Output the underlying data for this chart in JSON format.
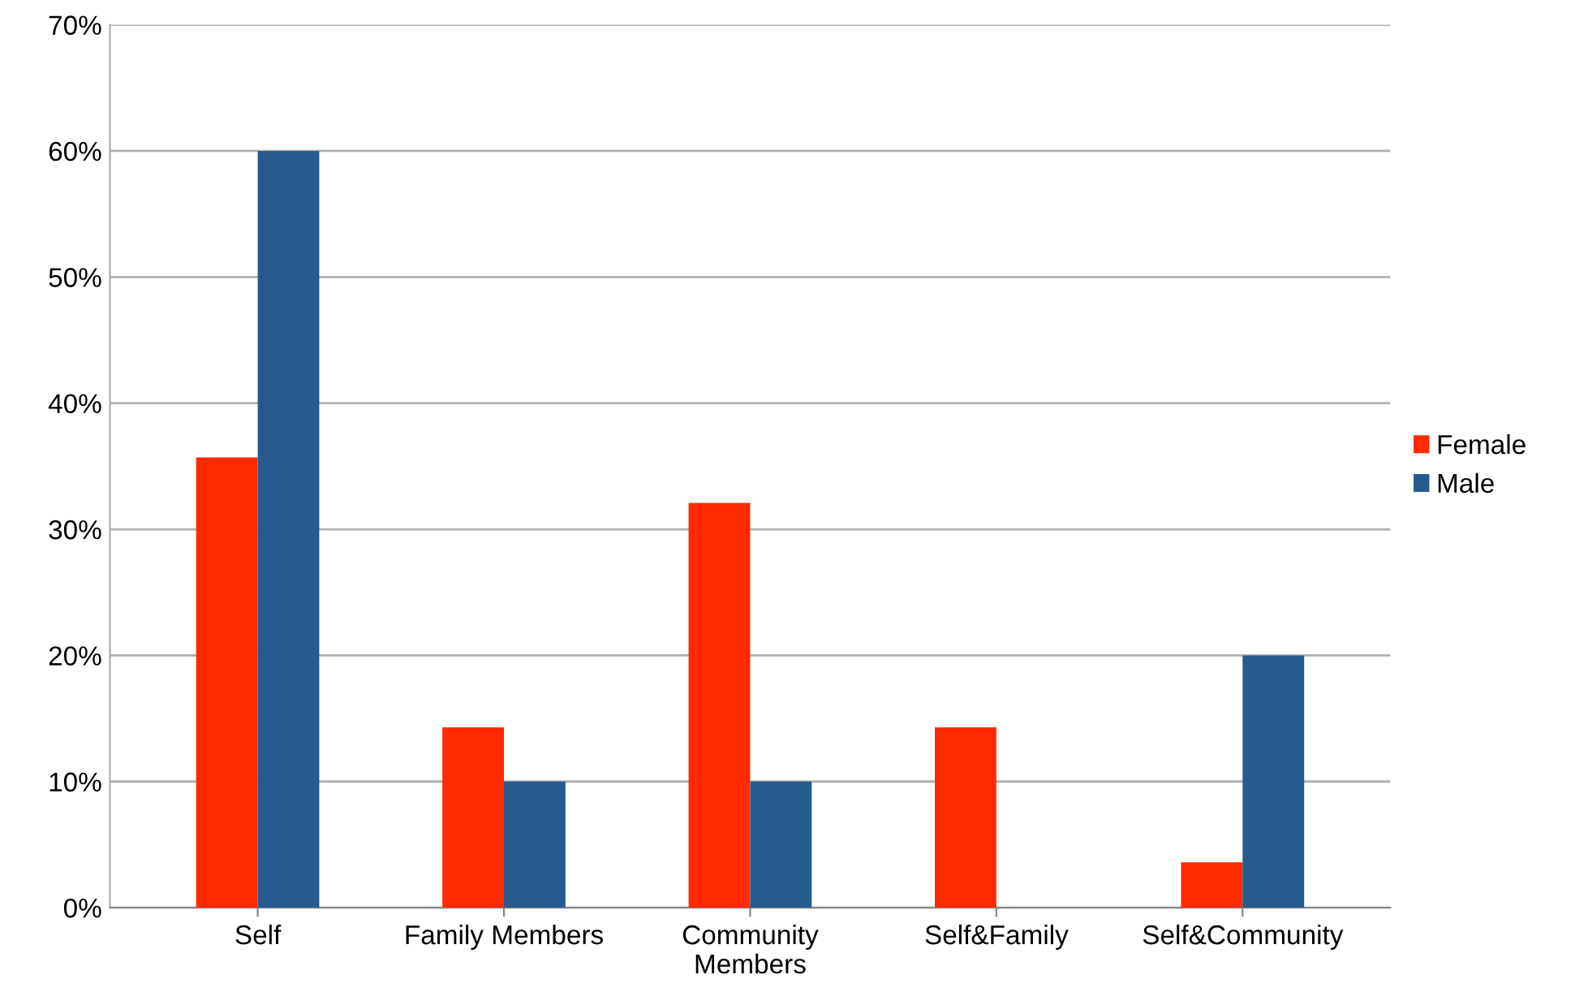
{
  "chart_data": {
    "type": "bar",
    "categories": [
      "Self",
      "Family Members",
      "Community\nMembers",
      "Self&Family",
      "Self&Community"
    ],
    "series": [
      {
        "name": "Female",
        "color": "#ff2a00",
        "values": [
          35.7,
          14.3,
          32.1,
          14.3,
          3.6
        ]
      },
      {
        "name": "Male",
        "color": "#275a8f",
        "values": [
          60,
          10,
          10,
          0,
          20
        ]
      }
    ],
    "ylim": [
      0,
      70
    ],
    "yticks": [
      {
        "value": 0,
        "label": "0%"
      },
      {
        "value": 10,
        "label": "10%"
      },
      {
        "value": 20,
        "label": "20%"
      },
      {
        "value": 30,
        "label": "30%"
      },
      {
        "value": 40,
        "label": "40%"
      },
      {
        "value": 50,
        "label": "50%"
      },
      {
        "value": 60,
        "label": "60%"
      },
      {
        "value": 70,
        "label": "70%"
      }
    ],
    "grid": "y",
    "legend": "right"
  }
}
